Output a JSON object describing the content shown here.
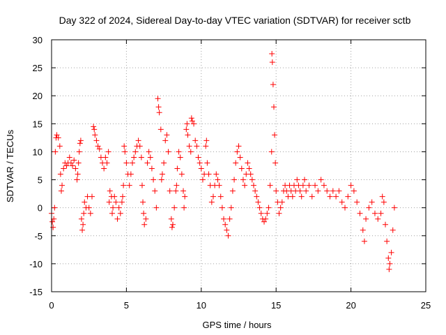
{
  "chart_data": {
    "type": "scatter",
    "title": "Day 322 of 2024, Sidereal Day-to-day VTEC variation (SDTVAR) for receiver sctb",
    "xlabel": "GPS time / hours",
    "ylabel": "SDTVAR / TECUs",
    "xlim": [
      0,
      25
    ],
    "ylim": [
      -15,
      30
    ],
    "x_ticks": [
      0,
      5,
      10,
      15,
      20,
      25
    ],
    "y_ticks": [
      -15,
      -10,
      -5,
      0,
      5,
      10,
      15,
      20,
      25,
      30
    ],
    "x_tick_labels": [
      "0",
      "5",
      "10",
      "15",
      "20",
      "25"
    ],
    "y_tick_labels": [
      "-15",
      "-10",
      "-5",
      "0",
      "5",
      "10",
      "15",
      "20",
      "25",
      "30"
    ],
    "grid": true,
    "marker": "plus",
    "color": "#ff0000",
    "series": [
      {
        "name": "SDTVAR",
        "points": [
          [
            0.0,
            -1
          ],
          [
            0.05,
            -2.5
          ],
          [
            0.1,
            -3.5
          ],
          [
            0.15,
            -2
          ],
          [
            0.2,
            0
          ],
          [
            0.25,
            10
          ],
          [
            0.3,
            12.5
          ],
          [
            0.35,
            13
          ],
          [
            0.45,
            12.5
          ],
          [
            0.55,
            11
          ],
          [
            0.6,
            6
          ],
          [
            0.65,
            3
          ],
          [
            0.7,
            4
          ],
          [
            0.8,
            7
          ],
          [
            0.9,
            8
          ],
          [
            1.0,
            7.5
          ],
          [
            1.1,
            8
          ],
          [
            1.2,
            9
          ],
          [
            1.3,
            8
          ],
          [
            1.4,
            7.5
          ],
          [
            1.5,
            8.5
          ],
          [
            1.6,
            7
          ],
          [
            1.7,
            5
          ],
          [
            1.75,
            6
          ],
          [
            1.8,
            8
          ],
          [
            1.85,
            10
          ],
          [
            1.9,
            11.5
          ],
          [
            1.95,
            12
          ],
          [
            2.0,
            -2
          ],
          [
            2.05,
            -4
          ],
          [
            2.1,
            -3
          ],
          [
            2.15,
            -1
          ],
          [
            2.2,
            1
          ],
          [
            2.3,
            0
          ],
          [
            2.4,
            2
          ],
          [
            2.5,
            0
          ],
          [
            2.6,
            -1
          ],
          [
            2.7,
            2
          ],
          [
            2.8,
            14.5
          ],
          [
            2.85,
            14
          ],
          [
            2.9,
            13
          ],
          [
            3.0,
            12
          ],
          [
            3.1,
            11
          ],
          [
            3.2,
            10.5
          ],
          [
            3.3,
            9
          ],
          [
            3.4,
            8
          ],
          [
            3.5,
            7
          ],
          [
            3.6,
            9
          ],
          [
            3.7,
            8
          ],
          [
            3.8,
            10
          ],
          [
            3.85,
            1
          ],
          [
            3.9,
            3
          ],
          [
            4.0,
            2
          ],
          [
            4.05,
            -1
          ],
          [
            4.1,
            0
          ],
          [
            4.2,
            2
          ],
          [
            4.3,
            1
          ],
          [
            4.4,
            -2
          ],
          [
            4.5,
            0
          ],
          [
            4.6,
            -1
          ],
          [
            4.7,
            1
          ],
          [
            4.75,
            2
          ],
          [
            4.8,
            4
          ],
          [
            4.85,
            11
          ],
          [
            4.9,
            10
          ],
          [
            5.0,
            8
          ],
          [
            5.1,
            6
          ],
          [
            5.2,
            4
          ],
          [
            5.3,
            6
          ],
          [
            5.4,
            8
          ],
          [
            5.5,
            9
          ],
          [
            5.6,
            10
          ],
          [
            5.7,
            11
          ],
          [
            5.8,
            12
          ],
          [
            5.9,
            11
          ],
          [
            6.0,
            9
          ],
          [
            6.05,
            4
          ],
          [
            6.1,
            1
          ],
          [
            6.15,
            -1
          ],
          [
            6.2,
            -3
          ],
          [
            6.3,
            -2
          ],
          [
            6.4,
            8
          ],
          [
            6.5,
            10
          ],
          [
            6.6,
            9
          ],
          [
            6.7,
            7
          ],
          [
            6.8,
            5
          ],
          [
            6.9,
            3
          ],
          [
            7.0,
            0
          ],
          [
            7.1,
            19.5
          ],
          [
            7.15,
            18
          ],
          [
            7.2,
            17
          ],
          [
            7.3,
            14
          ],
          [
            7.35,
            5
          ],
          [
            7.4,
            6
          ],
          [
            7.5,
            8
          ],
          [
            7.6,
            12
          ],
          [
            7.7,
            13
          ],
          [
            7.8,
            10
          ],
          [
            7.9,
            3
          ],
          [
            8.0,
            -2
          ],
          [
            8.05,
            -3.5
          ],
          [
            8.1,
            -3
          ],
          [
            8.2,
            0
          ],
          [
            8.3,
            3
          ],
          [
            8.35,
            4
          ],
          [
            8.4,
            7
          ],
          [
            8.5,
            10
          ],
          [
            8.6,
            9
          ],
          [
            8.7,
            6
          ],
          [
            8.8,
            3
          ],
          [
            8.85,
            0
          ],
          [
            8.9,
            2
          ],
          [
            9.0,
            14
          ],
          [
            9.05,
            15
          ],
          [
            9.1,
            13
          ],
          [
            9.2,
            11
          ],
          [
            9.3,
            10
          ],
          [
            9.35,
            16
          ],
          [
            9.4,
            15.5
          ],
          [
            9.5,
            15
          ],
          [
            9.6,
            12
          ],
          [
            9.7,
            11
          ],
          [
            9.8,
            9
          ],
          [
            9.9,
            8
          ],
          [
            10.0,
            7
          ],
          [
            10.1,
            5
          ],
          [
            10.2,
            6
          ],
          [
            10.3,
            11
          ],
          [
            10.35,
            12
          ],
          [
            10.4,
            8
          ],
          [
            10.5,
            6
          ],
          [
            10.6,
            4
          ],
          [
            10.7,
            1
          ],
          [
            10.8,
            2
          ],
          [
            10.9,
            4
          ],
          [
            11.0,
            6
          ],
          [
            11.1,
            5
          ],
          [
            11.2,
            4
          ],
          [
            11.3,
            2
          ],
          [
            11.4,
            0
          ],
          [
            11.5,
            -2
          ],
          [
            11.6,
            -3
          ],
          [
            11.7,
            -4
          ],
          [
            11.8,
            -5
          ],
          [
            11.9,
            -2
          ],
          [
            12.0,
            0
          ],
          [
            12.1,
            3
          ],
          [
            12.2,
            5
          ],
          [
            12.3,
            8
          ],
          [
            12.4,
            10
          ],
          [
            12.5,
            11
          ],
          [
            12.6,
            9
          ],
          [
            12.7,
            7
          ],
          [
            12.8,
            5
          ],
          [
            12.9,
            4
          ],
          [
            13.0,
            6
          ],
          [
            13.1,
            8
          ],
          [
            13.2,
            7
          ],
          [
            13.3,
            6
          ],
          [
            13.4,
            5
          ],
          [
            13.5,
            4
          ],
          [
            13.6,
            3
          ],
          [
            13.7,
            2
          ],
          [
            13.8,
            1
          ],
          [
            13.9,
            0
          ],
          [
            14.0,
            -1
          ],
          [
            14.1,
            -2
          ],
          [
            14.2,
            -2.5
          ],
          [
            14.3,
            -2
          ],
          [
            14.4,
            -1
          ],
          [
            14.5,
            0
          ],
          [
            14.6,
            4
          ],
          [
            14.7,
            10
          ],
          [
            14.72,
            27.5
          ],
          [
            14.75,
            26
          ],
          [
            14.8,
            22
          ],
          [
            14.85,
            18
          ],
          [
            14.9,
            13
          ],
          [
            14.95,
            8
          ],
          [
            15.0,
            3
          ],
          [
            15.1,
            1
          ],
          [
            15.2,
            -1
          ],
          [
            15.3,
            0
          ],
          [
            15.4,
            1
          ],
          [
            15.5,
            3
          ],
          [
            15.6,
            4
          ],
          [
            15.7,
            3
          ],
          [
            15.8,
            2
          ],
          [
            15.9,
            4
          ],
          [
            16.0,
            3
          ],
          [
            16.1,
            2
          ],
          [
            16.2,
            4
          ],
          [
            16.3,
            3
          ],
          [
            16.4,
            5
          ],
          [
            16.5,
            4
          ],
          [
            16.6,
            3
          ],
          [
            16.7,
            2
          ],
          [
            16.8,
            4
          ],
          [
            16.9,
            5
          ],
          [
            17.0,
            3
          ],
          [
            17.2,
            4
          ],
          [
            17.4,
            2
          ],
          [
            17.6,
            4
          ],
          [
            17.8,
            3
          ],
          [
            18.0,
            5
          ],
          [
            18.2,
            4
          ],
          [
            18.4,
            3
          ],
          [
            18.6,
            2
          ],
          [
            18.8,
            3
          ],
          [
            19.0,
            2
          ],
          [
            19.2,
            3
          ],
          [
            19.4,
            1
          ],
          [
            19.6,
            0
          ],
          [
            19.8,
            2
          ],
          [
            20.0,
            4
          ],
          [
            20.2,
            3
          ],
          [
            20.4,
            1
          ],
          [
            20.6,
            -1
          ],
          [
            20.8,
            -4
          ],
          [
            20.9,
            -6
          ],
          [
            21.0,
            -2
          ],
          [
            21.2,
            0
          ],
          [
            21.4,
            1
          ],
          [
            21.6,
            -1
          ],
          [
            21.8,
            -2
          ],
          [
            22.0,
            -1
          ],
          [
            22.1,
            2
          ],
          [
            22.2,
            1
          ],
          [
            22.3,
            -3
          ],
          [
            22.4,
            -6
          ],
          [
            22.5,
            -9
          ],
          [
            22.55,
            -11
          ],
          [
            22.6,
            -10
          ],
          [
            22.7,
            -8
          ],
          [
            22.8,
            -4
          ],
          [
            22.9,
            0
          ]
        ]
      }
    ]
  }
}
